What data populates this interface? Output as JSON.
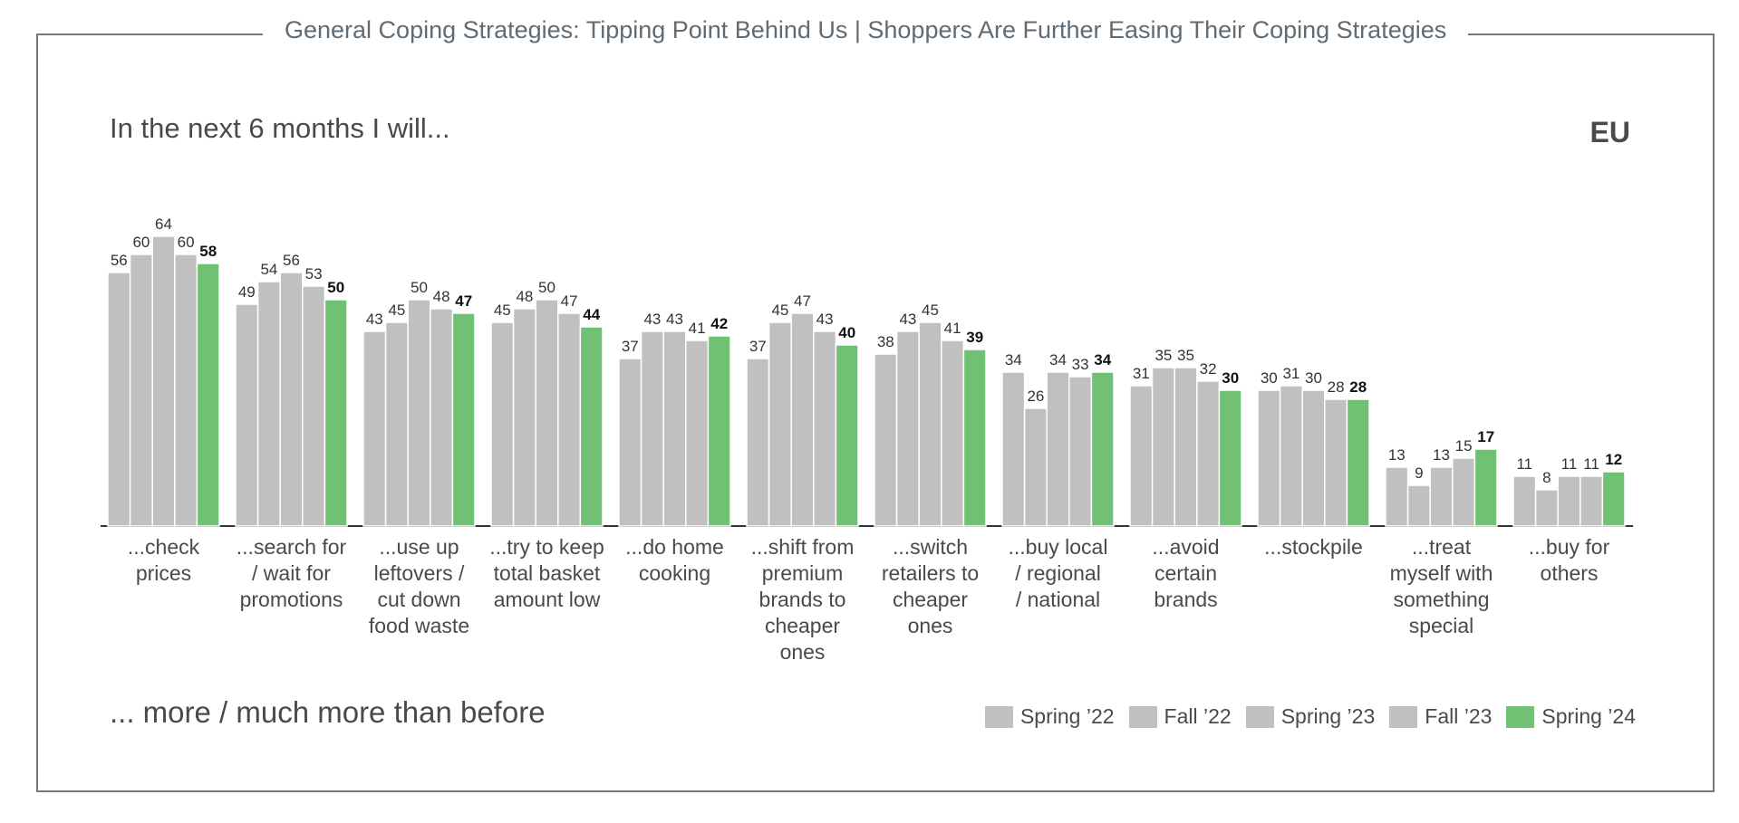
{
  "header": {
    "title": "General Coping Strategies: Tipping Point Behind Us | Shoppers Are Further Easing Their Coping Strategies",
    "subtitle": "In the next 6 months I will...",
    "region": "EU",
    "footnote": "... more / much more than before"
  },
  "colors": {
    "past": "#c0c0c0",
    "current": "#70c173",
    "axis": "#333333",
    "text": "#4a4a4a",
    "frame": "#6e7a85"
  },
  "chart_data": {
    "type": "bar",
    "categories": [
      "...check\nprices",
      "...search for\n/ wait for\npromotions",
      "...use up\nleftovers /\ncut down\nfood waste",
      "...try to keep\ntotal basket\namount low",
      "...do home\ncooking",
      "...shift from\npremium\nbrands to\ncheaper\nones",
      "...switch\nretailers to\ncheaper\nones",
      "...buy local\n/ regional\n/ national",
      "...avoid\ncertain\nbrands",
      "...stockpile",
      "...treat\nmyself with\nsomething\nspecial",
      "...buy for\nothers"
    ],
    "series": [
      {
        "name": "Spring ’22",
        "values": [
          56,
          49,
          43,
          45,
          37,
          37,
          38,
          34,
          31,
          30,
          13,
          11
        ]
      },
      {
        "name": "Fall ’22",
        "values": [
          60,
          54,
          45,
          48,
          43,
          45,
          43,
          26,
          35,
          31,
          9,
          8
        ]
      },
      {
        "name": "Spring ’23",
        "values": [
          64,
          56,
          50,
          50,
          43,
          47,
          45,
          34,
          35,
          30,
          13,
          11
        ]
      },
      {
        "name": "Fall ’23",
        "values": [
          60,
          53,
          48,
          47,
          41,
          43,
          41,
          33,
          32,
          28,
          15,
          11
        ]
      },
      {
        "name": "Spring ’24",
        "values": [
          58,
          50,
          47,
          44,
          42,
          40,
          39,
          34,
          30,
          28,
          17,
          12
        ]
      }
    ],
    "ylim": [
      0,
      64
    ],
    "grid": false,
    "legend": "bottom-right",
    "highlight_series": "Spring ’24"
  }
}
